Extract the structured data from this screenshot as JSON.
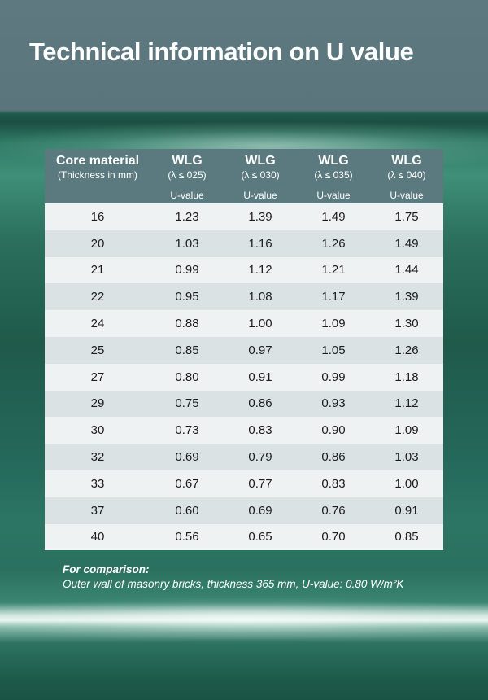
{
  "title": "Technical information on U value",
  "table": {
    "headers": [
      {
        "main": "Core material",
        "sub": "(Thickness in mm)",
        "unit": ""
      },
      {
        "main": "WLG",
        "sub": "(λ ≤ 025)",
        "unit": "U-value"
      },
      {
        "main": "WLG",
        "sub": "(λ ≤ 030)",
        "unit": "U-value"
      },
      {
        "main": "WLG",
        "sub": "(λ ≤ 035)",
        "unit": "U-value"
      },
      {
        "main": "WLG",
        "sub": "(λ ≤ 040)",
        "unit": "U-value"
      }
    ],
    "rows": [
      [
        "16",
        "1.23",
        "1.39",
        "1.49",
        "1.75"
      ],
      [
        "20",
        "1.03",
        "1.16",
        "1.26",
        "1.49"
      ],
      [
        "21",
        "0.99",
        "1.12",
        "1.21",
        "1.44"
      ],
      [
        "22",
        "0.95",
        "1.08",
        "1.17",
        "1.39"
      ],
      [
        "24",
        "0.88",
        "1.00",
        "1.09",
        "1.30"
      ],
      [
        "25",
        "0.85",
        "0.97",
        "1.05",
        "1.26"
      ],
      [
        "27",
        "0.80",
        "0.91",
        "0.99",
        "1.18"
      ],
      [
        "29",
        "0.75",
        "0.86",
        "0.93",
        "1.12"
      ],
      [
        "30",
        "0.73",
        "0.83",
        "0.90",
        "1.09"
      ],
      [
        "32",
        "0.69",
        "0.79",
        "0.86",
        "1.03"
      ],
      [
        "33",
        "0.67",
        "0.77",
        "0.83",
        "1.00"
      ],
      [
        "37",
        "0.60",
        "0.69",
        "0.76",
        "0.91"
      ],
      [
        "40",
        "0.56",
        "0.65",
        "0.70",
        "0.85"
      ]
    ]
  },
  "note": {
    "heading": "For comparison:",
    "text": "Outer wall of masonry bricks, thickness 365 mm, U-value: 0.80 W/m²K"
  }
}
